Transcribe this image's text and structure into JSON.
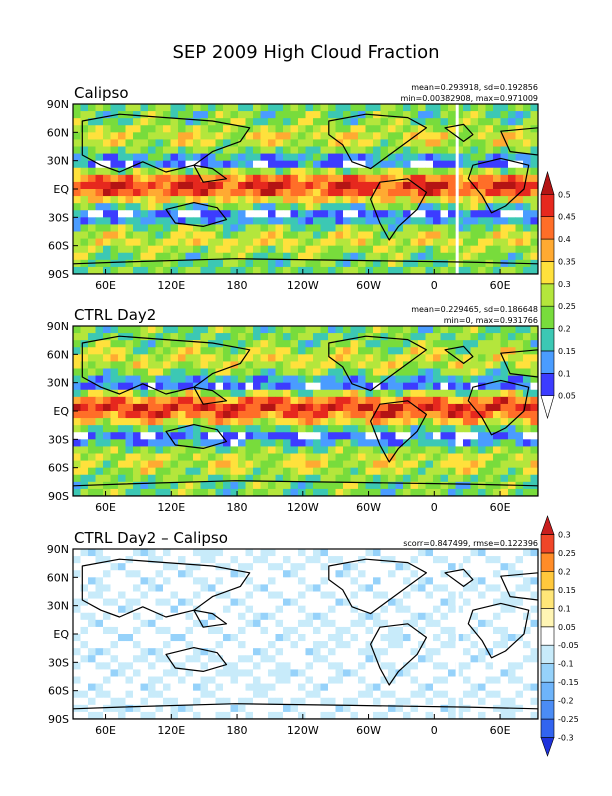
{
  "figure_title": "SEP 2009 High Cloud Fraction",
  "lon_ticks": [
    "60E",
    "120E",
    "180",
    "120W",
    "60W",
    "0",
    "60E"
  ],
  "lat_ticks": [
    "90N",
    "60N",
    "30N",
    "EQ",
    "30S",
    "60S",
    "90S"
  ],
  "panels": [
    {
      "title": "Calipso",
      "stats": [
        "mean=0.293918, sd=0.192856",
        "min=0.00382908, max=0.971009"
      ],
      "kind": "field",
      "seed": 11
    },
    {
      "title": "CTRL Day2",
      "stats": [
        "mean=0.229465, sd=0.186648",
        "min=0, max=0.931766"
      ],
      "kind": "field",
      "seed": 27
    },
    {
      "title": "CTRL Day2 – Calipso",
      "stats": [
        "scorr=0.847499, rmse=0.122396"
      ],
      "kind": "diff",
      "seed": 43
    }
  ],
  "colorbar_field": {
    "labels": [
      "0.05",
      "0.1",
      "0.15",
      "0.2",
      "0.25",
      "0.3",
      "0.35",
      "0.4",
      "0.45",
      "0.5"
    ],
    "colors": [
      "#ffffff",
      "#3c3cff",
      "#4a9cff",
      "#3cc8b4",
      "#78dc3c",
      "#b4e63c",
      "#ffe13c",
      "#ffaa32",
      "#ff6e28",
      "#e6281e",
      "#b41414"
    ]
  },
  "colorbar_diff": {
    "labels": [
      "-0.3",
      "-0.25",
      "-0.2",
      "-0.15",
      "-0.1",
      "-0.05",
      "0.05",
      "0.1",
      "0.15",
      "0.2",
      "0.25",
      "0.3"
    ],
    "colors": [
      "#1e32dc",
      "#3264f0",
      "#4b8cf5",
      "#6eb4fa",
      "#96d2fa",
      "#c8ebfa",
      "#ffffff",
      "#fff5b4",
      "#ffe678",
      "#ffc83c",
      "#ff8c28",
      "#f04628",
      "#c81e1e"
    ]
  },
  "chart_data": {
    "type": "heatmap",
    "title": "SEP 2009 High Cloud Fraction",
    "x_ticks": [
      "60E",
      "120E",
      "180",
      "120W",
      "60W",
      "0",
      "60E"
    ],
    "y_ticks": [
      "90N",
      "60N",
      "30N",
      "EQ",
      "30S",
      "60S",
      "90S"
    ],
    "series": [
      {
        "name": "Calipso",
        "mean": 0.293918,
        "sd": 0.192856,
        "min": 0.00382908,
        "max": 0.971009
      },
      {
        "name": "CTRL Day2",
        "mean": 0.229465,
        "sd": 0.186648,
        "min": 0,
        "max": 0.931766
      },
      {
        "name": "CTRL Day2 - Calipso",
        "scorr": 0.847499,
        "rmse": 0.122396
      }
    ],
    "field_levels": [
      0.05,
      0.1,
      0.15,
      0.2,
      0.25,
      0.3,
      0.35,
      0.4,
      0.45,
      0.5
    ],
    "diff_levels": [
      -0.3,
      -0.25,
      -0.2,
      -0.15,
      -0.1,
      -0.05,
      0.05,
      0.1,
      0.15,
      0.2,
      0.25,
      0.3
    ]
  }
}
